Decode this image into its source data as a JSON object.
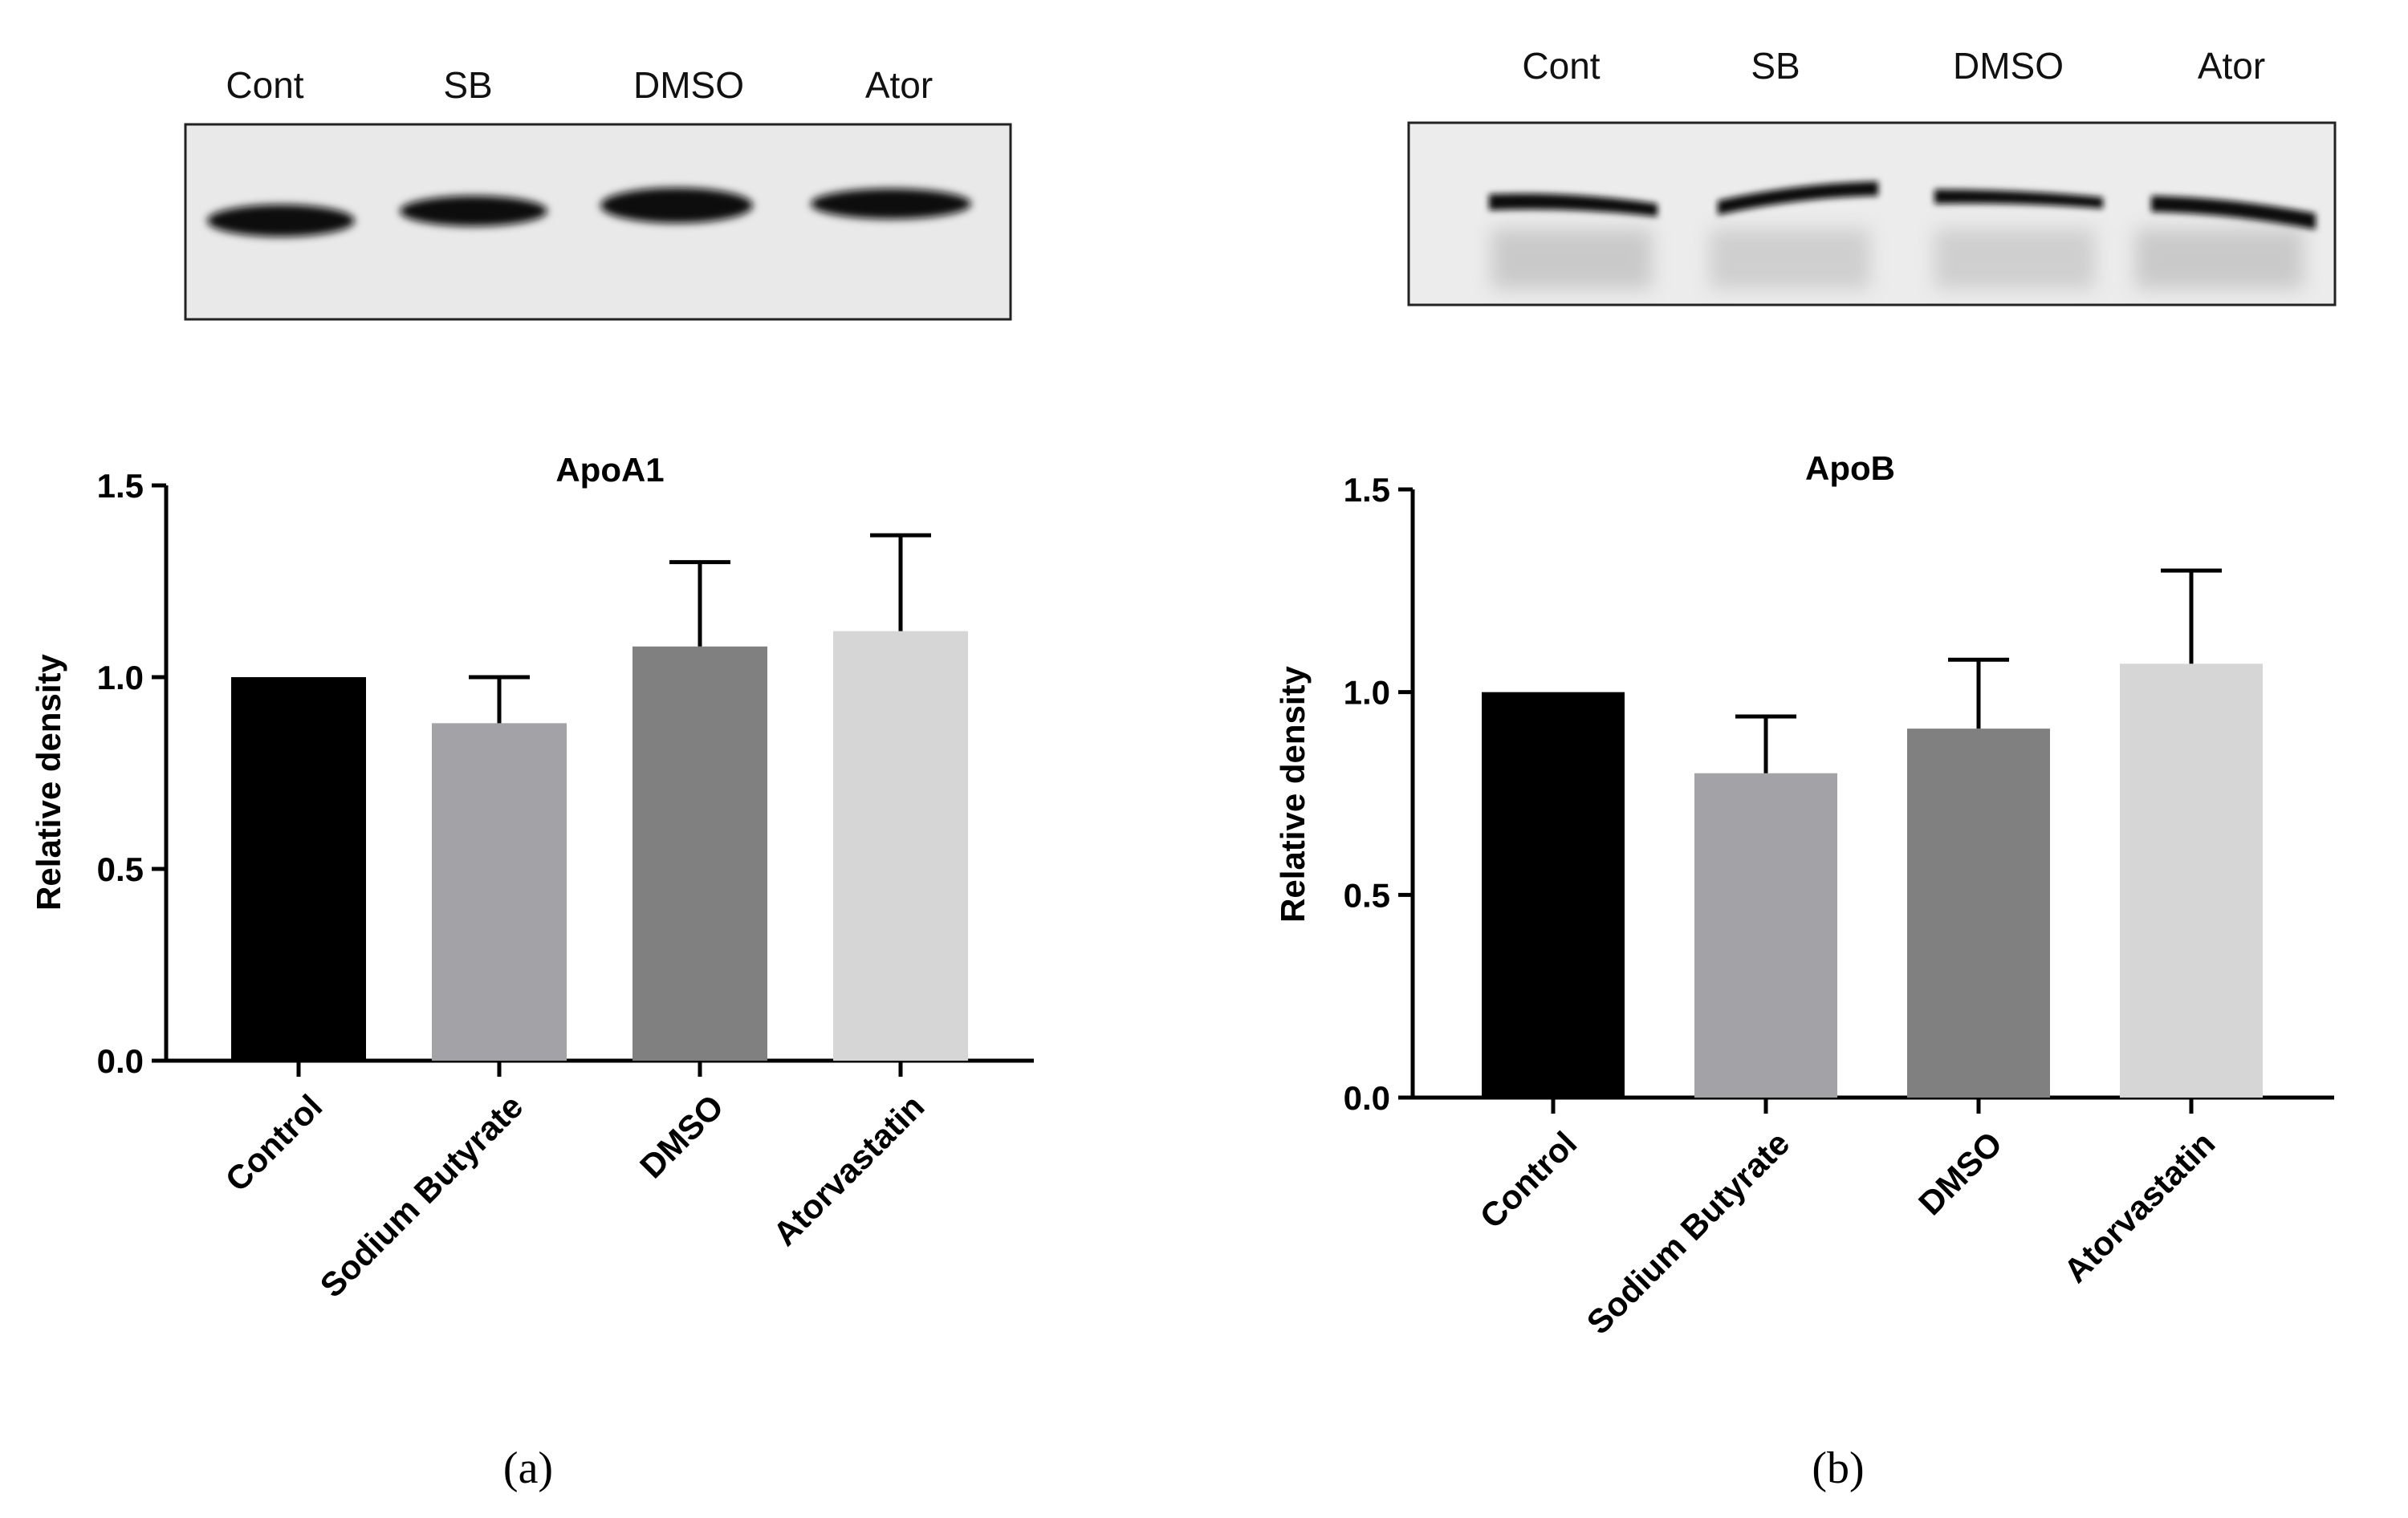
{
  "panels": [
    {
      "panel_label": "(a)",
      "blot": {
        "lanes": [
          "Cont",
          "SB",
          "DMSO",
          "Ator"
        ],
        "band_intensity": [
          0.95,
          0.85,
          0.98,
          0.82
        ]
      },
      "chart_data": {
        "type": "bar",
        "title": "ApoA1",
        "ylabel": "Relative density",
        "xlabel": "",
        "categories": [
          "Control",
          "Sodium Butyrate",
          "DMSO",
          "Atorvastatin"
        ],
        "values": [
          1.0,
          0.88,
          1.08,
          1.12
        ],
        "error_upper": [
          0.0,
          0.12,
          0.22,
          0.25
        ],
        "bar_colors": [
          "#000000",
          "#a3a3a7",
          "#808080",
          "#d6d6d6"
        ],
        "ylim": [
          0,
          1.5
        ],
        "yticks": [
          0.0,
          0.5,
          1.0,
          1.5
        ],
        "ytick_labels": [
          "0.0",
          "0.5",
          "1.0",
          "1.5"
        ],
        "grid": false
      }
    },
    {
      "panel_label": "(b)",
      "blot": {
        "lanes": [
          "Cont",
          "SB",
          "DMSO",
          "Ator"
        ],
        "band_intensity": [
          0.9,
          0.9,
          0.85,
          0.9
        ]
      },
      "chart_data": {
        "type": "bar",
        "title": "ApoB",
        "ylabel": "Relative density",
        "xlabel": "",
        "categories": [
          "Control",
          "Sodium Butyrate",
          "DMSO",
          "Atorvastatin"
        ],
        "values": [
          1.0,
          0.8,
          0.91,
          1.07
        ],
        "error_upper": [
          0.0,
          0.14,
          0.17,
          0.23
        ],
        "bar_colors": [
          "#000000",
          "#a3a3a7",
          "#808080",
          "#d6d6d6"
        ],
        "ylim": [
          0,
          1.5
        ],
        "yticks": [
          0.0,
          0.5,
          1.0,
          1.5
        ],
        "ytick_labels": [
          "0.0",
          "0.5",
          "1.0",
          "1.5"
        ],
        "grid": false
      }
    }
  ]
}
